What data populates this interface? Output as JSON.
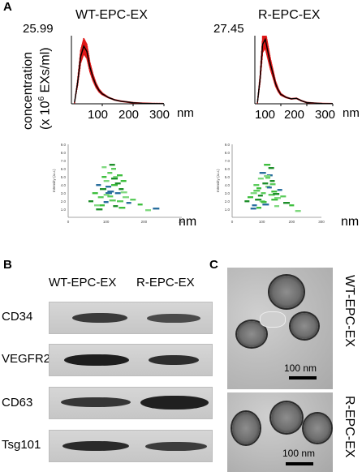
{
  "panels": {
    "a": "A",
    "b": "B",
    "c": "C"
  },
  "nta": {
    "ylabel_line1": "concentration",
    "ylabel_line2": "(x 10",
    "ylabel_sup": "6",
    "ylabel_tail": " EXs/ml)",
    "x_unit": "nm",
    "plots": [
      {
        "title": "WT-EPC-EX",
        "ymax_label": "25.99",
        "xticks": [
          "100",
          "200",
          "300"
        ]
      },
      {
        "title": "R-EPC-EX",
        "ymax_label": "27.45",
        "xticks": [
          "100",
          "200",
          "300"
        ]
      }
    ]
  },
  "chart_data": [
    {
      "type": "line",
      "title": "WT-EPC-EX",
      "xlabel": "nm",
      "ylabel": "concentration (x 10^6 EXs/ml)",
      "xlim": [
        0,
        300
      ],
      "ylim": [
        0,
        25.99
      ],
      "series": [
        {
          "x": [
            10,
            20,
            30,
            40,
            50,
            60,
            70,
            80,
            90,
            100,
            120,
            140,
            160,
            180,
            200,
            230,
            260,
            300
          ],
          "y": [
            0.5,
            8,
            18,
            22,
            20,
            14,
            10,
            7,
            5,
            3.8,
            2.4,
            1.5,
            1.0,
            0.7,
            0.4,
            0.2,
            0.1,
            0.05
          ]
        }
      ]
    },
    {
      "type": "line",
      "title": "R-EPC-EX",
      "xlabel": "nm",
      "ylabel": "concentration (x 10^6 EXs/ml)",
      "xlim": [
        0,
        300
      ],
      "ylim": [
        0,
        27.45
      ],
      "series": [
        {
          "x": [
            10,
            20,
            30,
            40,
            50,
            60,
            70,
            80,
            90,
            100,
            120,
            140,
            160,
            180,
            200,
            230,
            260,
            300
          ],
          "y": [
            0.5,
            10,
            24,
            26,
            21,
            16,
            12,
            8,
            5.5,
            3.8,
            2.6,
            2.0,
            2.2,
            1.2,
            0.5,
            0.25,
            0.1,
            0.05
          ]
        }
      ]
    },
    {
      "type": "scatter",
      "ylabel": "Intensity (a.u.)",
      "xlabel": "nm",
      "xlim": [
        0,
        300
      ],
      "ylim": [
        0,
        9
      ],
      "xticks": [
        "0",
        "100",
        "200",
        "300"
      ],
      "yticks": [
        "1.0",
        "2.0",
        "3.0",
        "4.0",
        "5.0",
        "6.0",
        "7.0",
        "8.0",
        "9.0"
      ],
      "x": [
        60,
        70,
        75,
        80,
        85,
        90,
        95,
        100,
        105,
        110,
        115,
        120,
        125,
        130,
        135,
        140,
        145,
        150,
        160,
        170,
        80,
        90,
        100,
        110,
        120,
        130,
        140,
        95,
        105,
        115,
        125,
        135,
        145,
        100,
        110,
        120,
        190,
        210,
        230
      ],
      "y": [
        2,
        3,
        1.5,
        4,
        2.5,
        3.5,
        5,
        4.5,
        3,
        5.5,
        6.5,
        4,
        5,
        3,
        2,
        3.5,
        4.5,
        2.5,
        1.8,
        2.2,
        1,
        1.5,
        2.8,
        3.2,
        6,
        4.2,
        1.2,
        6.2,
        3.8,
        2.1,
        1.4,
        5.2,
        3.1,
        1.9,
        2.6,
        4.8,
        1.6,
        0.9,
        1.1
      ]
    },
    {
      "type": "scatter",
      "ylabel": "Intensity (a.u.)",
      "xlabel": "nm",
      "xlim": [
        0,
        300
      ],
      "ylim": [
        0,
        9
      ],
      "xticks": [
        "0",
        "100",
        "200",
        "300"
      ],
      "yticks": [
        "1.0",
        "2.0",
        "3.0",
        "4.0",
        "5.0",
        "6.0",
        "7.0",
        "8.0",
        "9.0"
      ],
      "x": [
        50,
        60,
        70,
        75,
        80,
        85,
        90,
        95,
        100,
        105,
        110,
        115,
        120,
        125,
        130,
        135,
        140,
        150,
        160,
        170,
        180,
        90,
        100,
        110,
        120,
        130,
        140,
        150,
        70,
        80,
        95,
        105,
        115,
        125,
        135,
        145,
        200,
        220
      ],
      "y": [
        2,
        2.5,
        3,
        1.5,
        4,
        2.2,
        3.6,
        4.8,
        5.5,
        3,
        4.2,
        6.5,
        3.8,
        5.2,
        2.8,
        4.5,
        3.2,
        2.4,
        3.4,
        2.6,
        1.8,
        1.2,
        2,
        1.6,
        4.9,
        6.1,
        2.2,
        1.4,
        1.1,
        3.3,
        2.7,
        1.9,
        5.1,
        3.7,
        4.1,
        2.9,
        1.5,
        0.8
      ]
    }
  ],
  "western": {
    "columns": [
      "WT-EPC-EX",
      "R-EPC-EX"
    ],
    "rows": [
      "CD34",
      "VEGFR2",
      "CD63",
      "Tsg101"
    ]
  },
  "tem": {
    "labels": [
      "WT-EPC-EX",
      "R-EPC-EX"
    ],
    "scalebar": [
      "100 nm",
      "100 nm"
    ]
  }
}
